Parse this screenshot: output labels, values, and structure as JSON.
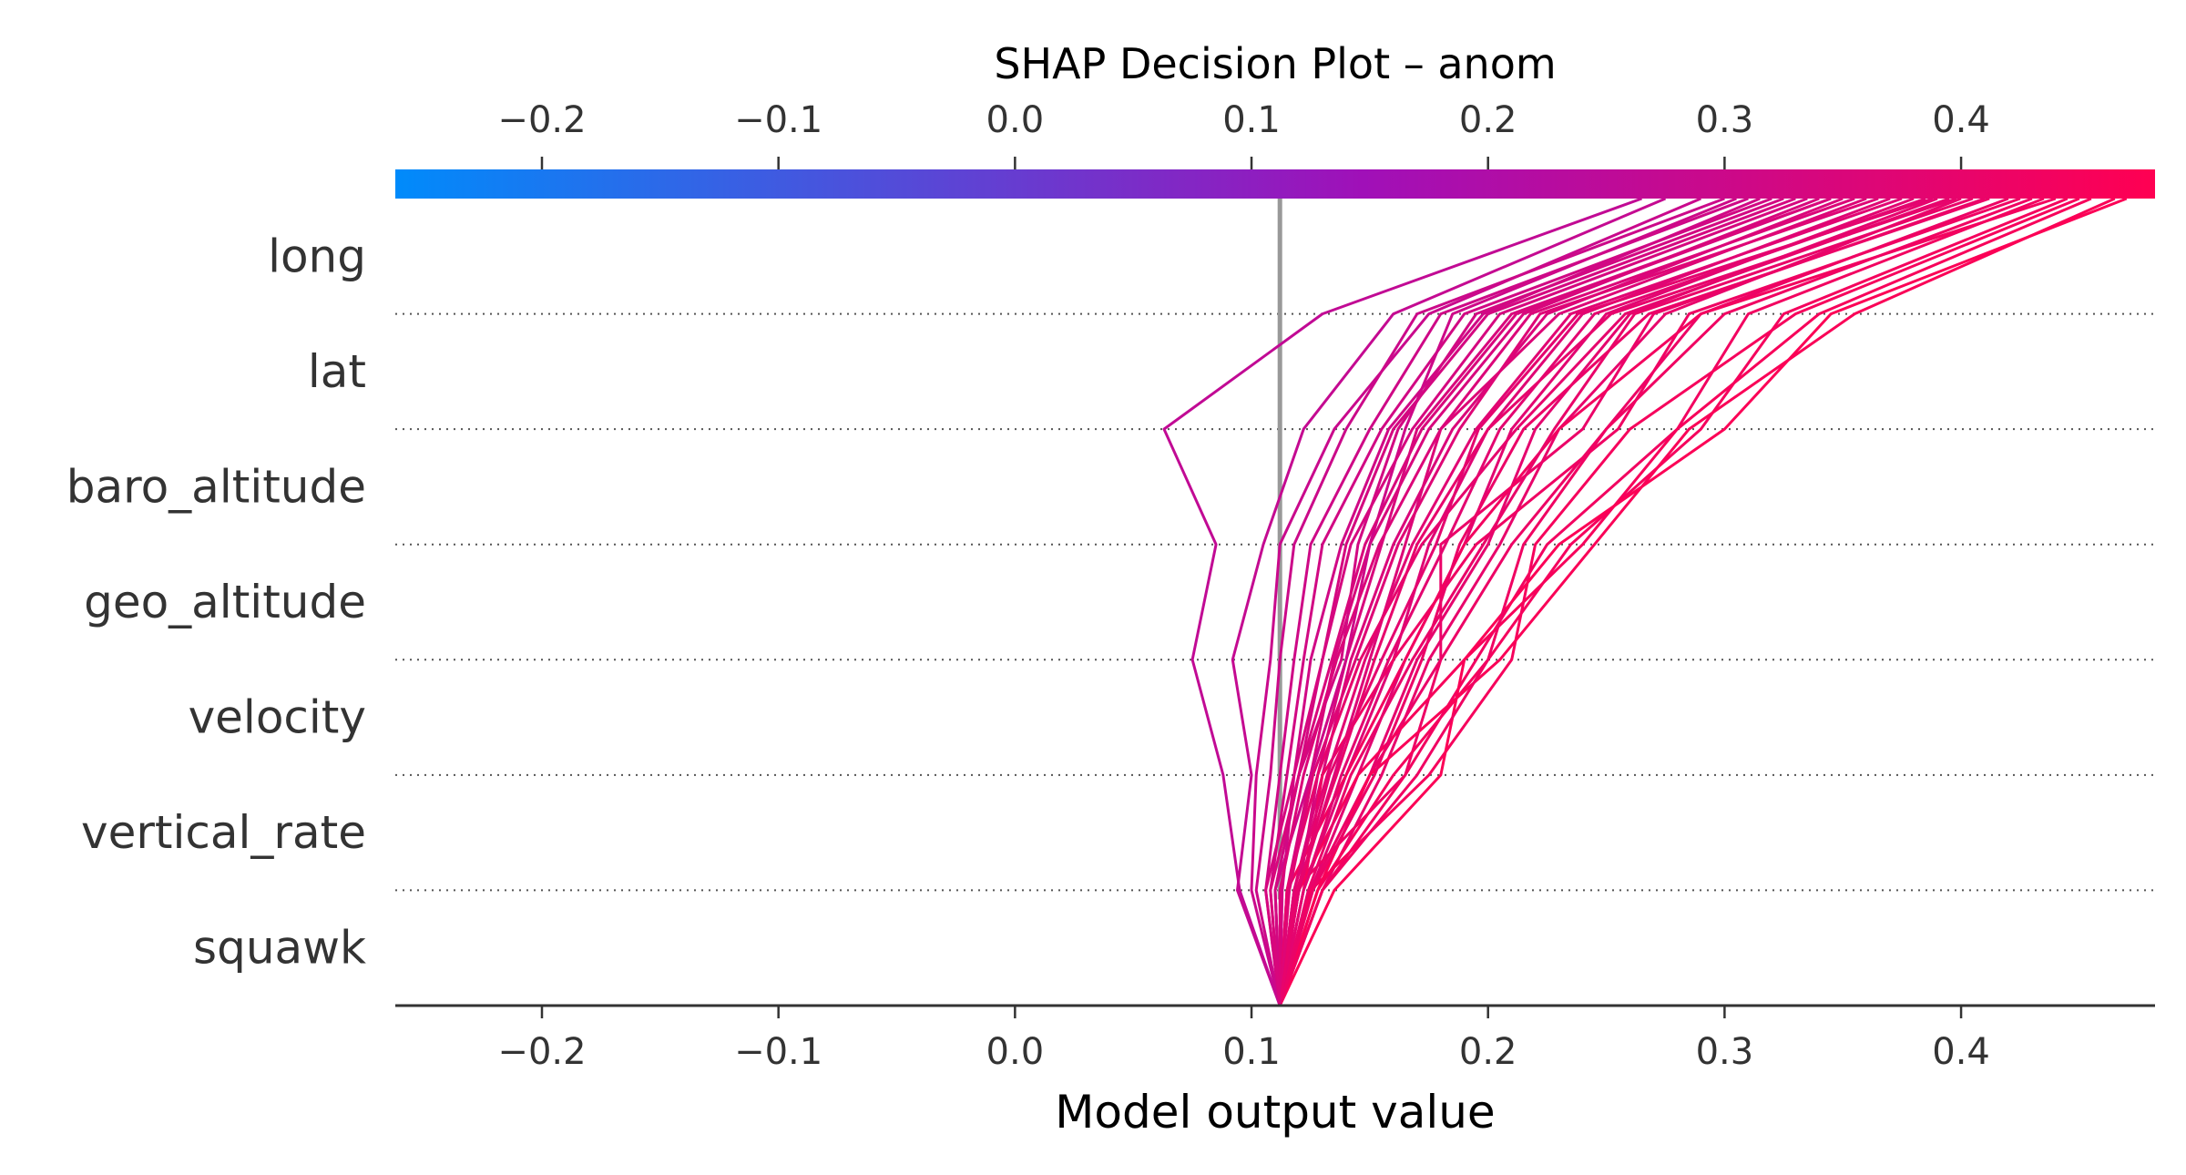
{
  "chart_data": {
    "type": "line",
    "title": "SHAP Decision Plot – anom",
    "xlabel": "Model output value",
    "ylabel": "",
    "base_value": 0.112,
    "xlim": [
      -0.262,
      0.482
    ],
    "xticks": [
      -0.2,
      -0.1,
      0.0,
      0.1,
      0.2,
      0.3,
      0.4
    ],
    "xtick_labels": [
      "−0.2",
      "−0.1",
      "0.0",
      "0.1",
      "0.2",
      "0.3",
      "0.4"
    ],
    "features": [
      "long",
      "lat",
      "baro_altitude",
      "geo_altitude",
      "velocity",
      "vertical_rate",
      "squawk"
    ],
    "colorbar": {
      "low": "#008bfb",
      "mid": "#a010b8",
      "high": "#ff0052"
    },
    "grid": "dotted rows",
    "series": [
      {
        "values": [
          0.112,
          0.095,
          0.088,
          0.075,
          0.085,
          0.063,
          0.13,
          0.265
        ]
      },
      {
        "values": [
          0.112,
          0.094,
          0.1,
          0.092,
          0.105,
          0.122,
          0.16,
          0.275
        ]
      },
      {
        "values": [
          0.112,
          0.1,
          0.102,
          0.108,
          0.112,
          0.135,
          0.175,
          0.29
        ]
      },
      {
        "values": [
          0.112,
          0.102,
          0.108,
          0.112,
          0.118,
          0.14,
          0.17,
          0.3
        ]
      },
      {
        "values": [
          0.112,
          0.106,
          0.112,
          0.118,
          0.125,
          0.15,
          0.18,
          0.31
        ]
      },
      {
        "values": [
          0.112,
          0.108,
          0.115,
          0.122,
          0.13,
          0.155,
          0.19,
          0.32
        ]
      },
      {
        "values": [
          0.112,
          0.11,
          0.12,
          0.13,
          0.14,
          0.16,
          0.2,
          0.33
        ]
      },
      {
        "values": [
          0.112,
          0.115,
          0.125,
          0.135,
          0.15,
          0.175,
          0.215,
          0.34
        ]
      },
      {
        "values": [
          0.112,
          0.118,
          0.13,
          0.142,
          0.16,
          0.185,
          0.225,
          0.35
        ]
      },
      {
        "values": [
          0.112,
          0.12,
          0.128,
          0.14,
          0.155,
          0.17,
          0.21,
          0.345
        ]
      },
      {
        "values": [
          0.112,
          0.113,
          0.118,
          0.125,
          0.138,
          0.158,
          0.198,
          0.315
        ]
      },
      {
        "values": [
          0.112,
          0.12,
          0.135,
          0.15,
          0.165,
          0.18,
          0.23,
          0.36
        ]
      },
      {
        "values": [
          0.112,
          0.122,
          0.14,
          0.16,
          0.175,
          0.2,
          0.24,
          0.37
        ]
      },
      {
        "values": [
          0.112,
          0.125,
          0.145,
          0.165,
          0.19,
          0.21,
          0.25,
          0.38
        ]
      },
      {
        "values": [
          0.112,
          0.128,
          0.15,
          0.17,
          0.2,
          0.22,
          0.26,
          0.39
        ]
      },
      {
        "values": [
          0.112,
          0.13,
          0.155,
          0.175,
          0.205,
          0.23,
          0.275,
          0.4
        ]
      },
      {
        "values": [
          0.112,
          0.125,
          0.15,
          0.18,
          0.18,
          0.24,
          0.27,
          0.41
        ]
      },
      {
        "values": [
          0.112,
          0.118,
          0.165,
          0.18,
          0.21,
          0.25,
          0.29,
          0.42
        ]
      },
      {
        "values": [
          0.112,
          0.122,
          0.13,
          0.16,
          0.195,
          0.255,
          0.285,
          0.425
        ]
      },
      {
        "values": [
          0.112,
          0.13,
          0.165,
          0.195,
          0.225,
          0.28,
          0.31,
          0.435
        ]
      },
      {
        "values": [
          0.112,
          0.128,
          0.16,
          0.2,
          0.235,
          0.29,
          0.325,
          0.445
        ]
      },
      {
        "values": [
          0.112,
          0.125,
          0.175,
          0.21,
          0.22,
          0.26,
          0.33,
          0.45
        ]
      },
      {
        "values": [
          0.112,
          0.12,
          0.145,
          0.19,
          0.24,
          0.28,
          0.34,
          0.455
        ]
      },
      {
        "values": [
          0.112,
          0.128,
          0.15,
          0.205,
          0.245,
          0.285,
          0.355,
          0.465
        ]
      },
      {
        "values": [
          0.112,
          0.135,
          0.18,
          0.19,
          0.23,
          0.3,
          0.345,
          0.47
        ]
      },
      {
        "values": [
          0.112,
          0.115,
          0.14,
          0.165,
          0.19,
          0.23,
          0.29,
          0.44
        ]
      },
      {
        "values": [
          0.112,
          0.13,
          0.17,
          0.2,
          0.215,
          0.25,
          0.3,
          0.43
        ]
      },
      {
        "values": [
          0.112,
          0.11,
          0.125,
          0.14,
          0.15,
          0.165,
          0.185,
          0.305
        ]
      },
      {
        "values": [
          0.112,
          0.11,
          0.12,
          0.138,
          0.145,
          0.162,
          0.195,
          0.325
        ]
      },
      {
        "values": [
          0.112,
          0.118,
          0.132,
          0.148,
          0.168,
          0.195,
          0.235,
          0.375
        ]
      },
      {
        "values": [
          0.112,
          0.122,
          0.138,
          0.158,
          0.182,
          0.205,
          0.245,
          0.385
        ]
      },
      {
        "values": [
          0.112,
          0.115,
          0.128,
          0.146,
          0.172,
          0.212,
          0.258,
          0.395
        ]
      },
      {
        "values": [
          0.112,
          0.124,
          0.142,
          0.168,
          0.198,
          0.228,
          0.262,
          0.405
        ]
      },
      {
        "values": [
          0.112,
          0.106,
          0.118,
          0.13,
          0.142,
          0.168,
          0.205,
          0.335
        ]
      },
      {
        "values": [
          0.112,
          0.116,
          0.126,
          0.144,
          0.162,
          0.188,
          0.222,
          0.365
        ]
      },
      {
        "values": [
          0.112,
          0.12,
          0.133,
          0.155,
          0.178,
          0.196,
          0.238,
          0.388
        ]
      },
      {
        "values": [
          0.112,
          0.126,
          0.152,
          0.172,
          0.188,
          0.215,
          0.268,
          0.412
        ]
      },
      {
        "values": [
          0.112,
          0.112,
          0.122,
          0.136,
          0.154,
          0.18,
          0.218,
          0.355
        ]
      },
      {
        "values": [
          0.112,
          0.119,
          0.136,
          0.152,
          0.17,
          0.2,
          0.252,
          0.398
        ]
      },
      {
        "values": [
          0.112,
          0.108,
          0.12,
          0.134,
          0.148,
          0.172,
          0.212,
          0.345
        ]
      }
    ]
  }
}
